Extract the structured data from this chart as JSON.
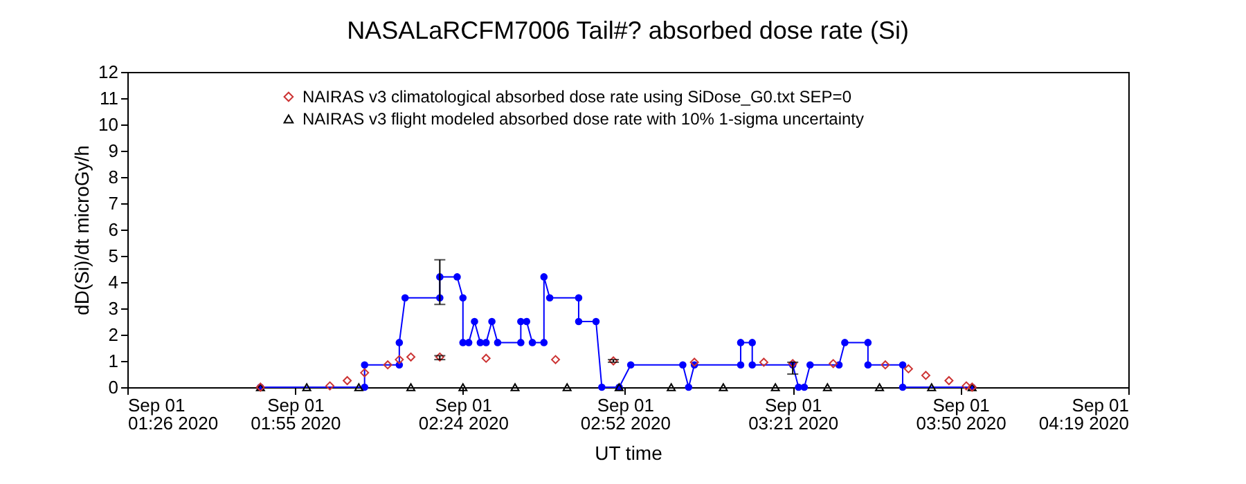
{
  "chart_data": {
    "type": "line",
    "title": "NASALaRCFM7006  Tail#? absorbed dose rate (Si)",
    "xlabel": "UT time",
    "ylabel": "dD(Si)/dt microGy/h",
    "xlim": [
      "2020-09-01T01:26",
      "2020-09-01T04:19"
    ],
    "xticks": [
      {
        "value": "2020-09-01T01:26",
        "label": "Sep 01\n01:26 2020"
      },
      {
        "value": "2020-09-01T01:55",
        "label": "Sep 01\n01:55 2020"
      },
      {
        "value": "2020-09-01T02:24",
        "label": "Sep 01\n02:24 2020"
      },
      {
        "value": "2020-09-01T02:52",
        "label": "Sep 01\n02:52 2020"
      },
      {
        "value": "2020-09-01T03:21",
        "label": "Sep 01\n03:21 2020"
      },
      {
        "value": "2020-09-01T03:50",
        "label": "Sep 01\n03:50 2020"
      },
      {
        "value": "2020-09-01T04:19",
        "label": "Sep 01\n04:19 2020"
      }
    ],
    "ylim": [
      0,
      12
    ],
    "yticks": [
      0,
      1,
      2,
      3,
      4,
      5,
      6,
      7,
      8,
      9,
      10,
      11,
      12
    ],
    "grid": false,
    "legend": "top left",
    "series": [
      {
        "name": "NAIRAS v3 climatological absorbed dose rate using SiDose_G0.txt SEP=0",
        "type": "scatter",
        "marker": "diamond",
        "color": "#cc3333",
        "x": [
          "2020-09-01T01:49",
          "2020-09-01T02:01",
          "2020-09-01T02:04",
          "2020-09-01T02:07",
          "2020-09-01T02:11",
          "2020-09-01T02:13",
          "2020-09-01T02:15",
          "2020-09-01T02:20",
          "2020-09-01T02:28",
          "2020-09-01T02:40",
          "2020-09-01T02:50",
          "2020-09-01T03:04",
          "2020-09-01T03:16",
          "2020-09-01T03:21",
          "2020-09-01T03:28",
          "2020-09-01T03:37",
          "2020-09-01T03:41",
          "2020-09-01T03:44",
          "2020-09-01T03:48",
          "2020-09-01T03:51",
          "2020-09-01T03:52"
        ],
        "values": [
          0,
          0.05,
          0.25,
          0.55,
          0.85,
          1.05,
          1.15,
          1.15,
          1.1,
          1.05,
          1.0,
          0.95,
          0.95,
          0.9,
          0.9,
          0.85,
          0.7,
          0.45,
          0.25,
          0.05,
          0
        ],
        "errors": [
          null,
          null,
          null,
          null,
          null,
          null,
          null,
          [
            1.05,
            1.2
          ],
          null,
          null,
          [
            0.95,
            1.05
          ],
          null,
          null,
          [
            0.5,
            0.95
          ],
          null,
          null,
          null,
          null,
          null,
          null,
          null
        ]
      },
      {
        "name": "NAIRAS v3 flight modeled absorbed dose rate with 10% 1-sigma uncertainty",
        "type": "scatter",
        "marker": "triangle",
        "color": "#000000",
        "x": [
          "2020-09-01T01:49",
          "2020-09-01T01:57",
          "2020-09-01T02:06",
          "2020-09-01T02:15",
          "2020-09-01T02:24",
          "2020-09-01T02:33",
          "2020-09-01T02:42",
          "2020-09-01T02:51",
          "2020-09-01T03:00",
          "2020-09-01T03:09",
          "2020-09-01T03:18",
          "2020-09-01T03:27",
          "2020-09-01T03:36",
          "2020-09-01T03:45",
          "2020-09-01T03:52"
        ],
        "values": [
          0,
          0,
          0,
          0,
          0,
          0,
          0,
          0,
          0,
          0,
          0,
          0,
          0,
          0,
          0
        ]
      },
      {
        "marker": "circle",
        "color": "#0000ff",
        "x": [
          "2020-09-01T01:49",
          "2020-09-01T02:07",
          "2020-09-01T02:07",
          "2020-09-01T02:13",
          "2020-09-01T02:13",
          "2020-09-01T02:14",
          "2020-09-01T02:20",
          "2020-09-01T02:20",
          "2020-09-01T02:23",
          "2020-09-01T02:24",
          "2020-09-01T02:24",
          "2020-09-01T02:25",
          "2020-09-01T02:26",
          "2020-09-01T02:27",
          "2020-09-01T02:28",
          "2020-09-01T02:29",
          "2020-09-01T02:30",
          "2020-09-01T02:34",
          "2020-09-01T02:34",
          "2020-09-01T02:35",
          "2020-09-01T02:36",
          "2020-09-01T02:38",
          "2020-09-01T02:38",
          "2020-09-01T02:39",
          "2020-09-01T02:44",
          "2020-09-01T02:44",
          "2020-09-01T02:47",
          "2020-09-01T02:48",
          "2020-09-01T02:51",
          "2020-09-01T02:53",
          "2020-09-01T03:02",
          "2020-09-01T03:03",
          "2020-09-01T03:04",
          "2020-09-01T03:12",
          "2020-09-01T03:12",
          "2020-09-01T03:14",
          "2020-09-01T03:14",
          "2020-09-01T03:21",
          "2020-09-01T03:22",
          "2020-09-01T03:23",
          "2020-09-01T03:24",
          "2020-09-01T03:29",
          "2020-09-01T03:30",
          "2020-09-01T03:34",
          "2020-09-01T03:34",
          "2020-09-01T03:40",
          "2020-09-01T03:40",
          "2020-09-01T03:52"
        ],
        "values": [
          0,
          0,
          0.85,
          0.85,
          1.7,
          3.4,
          3.4,
          4.2,
          4.2,
          3.4,
          1.7,
          1.7,
          2.5,
          1.7,
          1.7,
          2.5,
          1.7,
          1.7,
          2.5,
          2.5,
          1.7,
          1.7,
          4.2,
          3.4,
          3.4,
          2.5,
          2.5,
          0,
          0,
          0.85,
          0.85,
          0,
          0.85,
          0.85,
          1.7,
          1.7,
          0.85,
          0.85,
          0,
          0,
          0.85,
          0.85,
          1.7,
          1.7,
          0.85,
          0.85,
          0,
          0
        ],
        "errors": [
          null,
          null,
          null,
          null,
          null,
          null,
          null,
          [
            3.15,
            4.85
          ],
          null,
          null,
          null,
          null,
          null,
          null,
          null,
          null,
          null,
          null,
          null,
          null,
          null,
          null,
          null,
          null,
          null,
          null,
          null,
          null,
          null,
          null,
          null,
          null,
          null,
          null,
          null,
          null,
          null,
          null,
          null,
          null,
          null,
          null,
          null,
          null,
          null,
          null,
          null,
          null
        ]
      }
    ]
  }
}
